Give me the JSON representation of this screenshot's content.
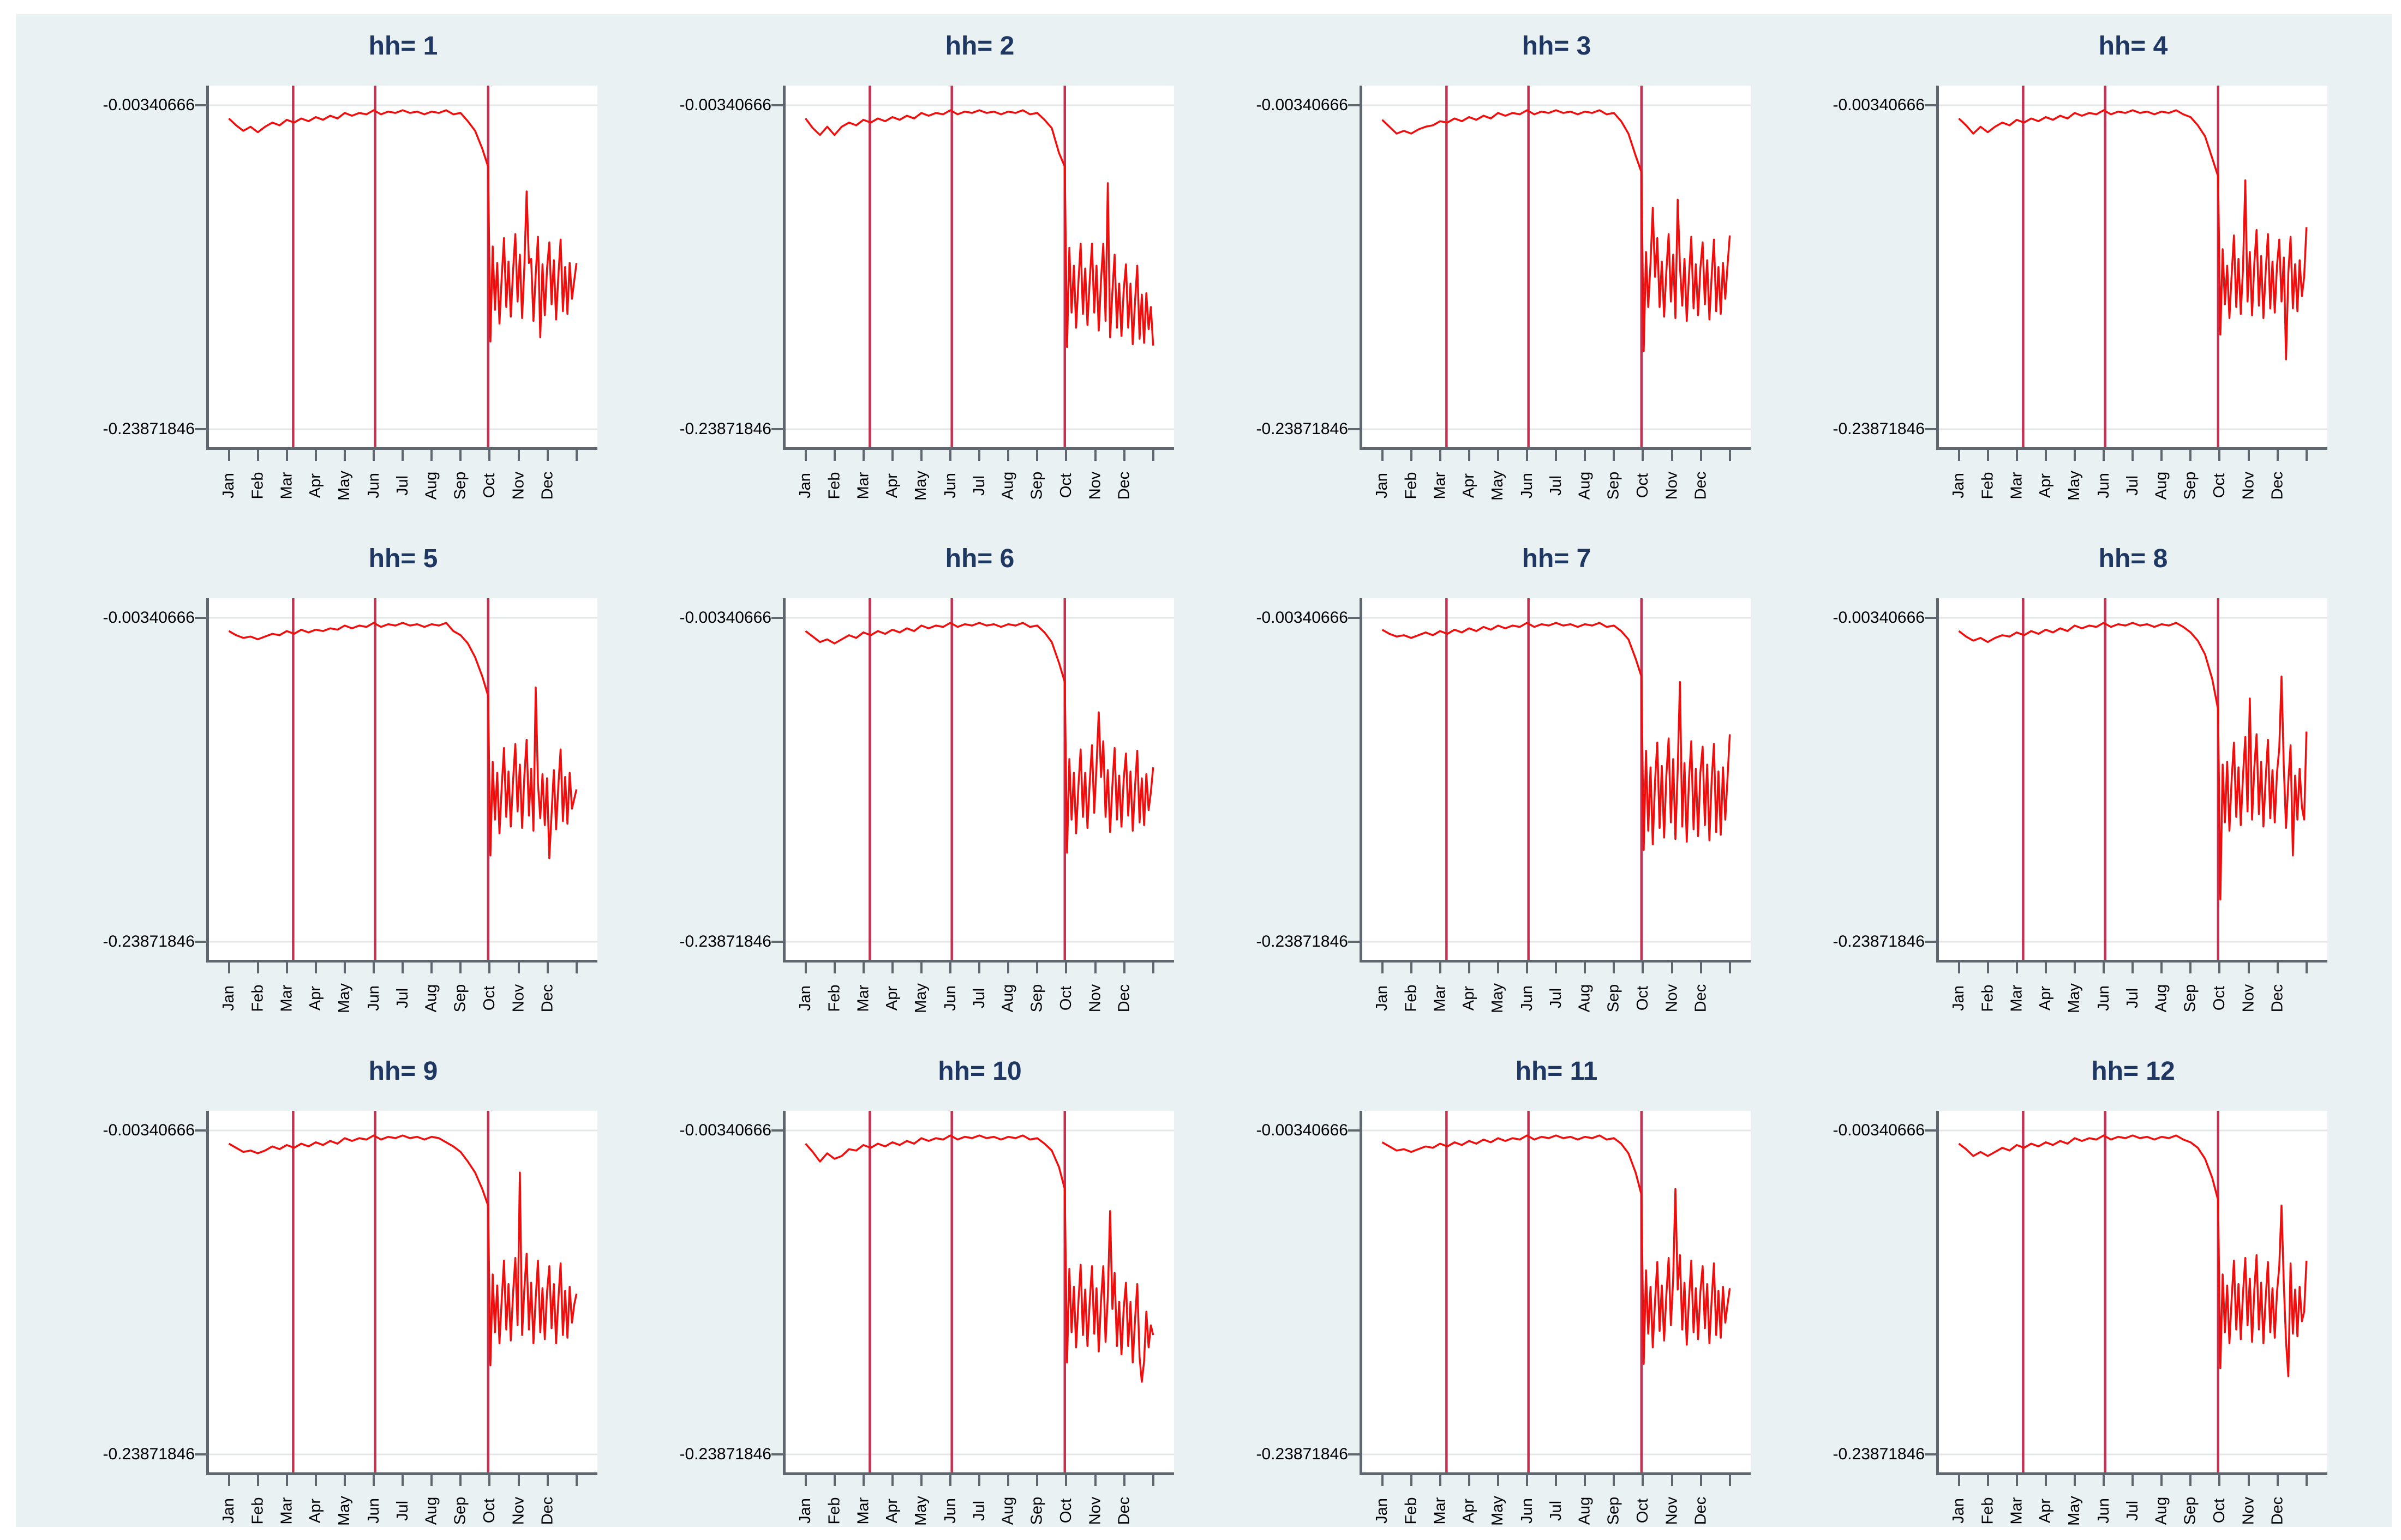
{
  "colors": {
    "page_bg": "#ffffff",
    "canvas_bg": "#eaf1f3",
    "plot_bg": "#ffffff",
    "series_line": "#f20d0d",
    "reference_line": "#c02040",
    "gridline": "#e3e7e8",
    "axis_line": "#5f666d",
    "title_text": "#1e3763",
    "tick_text": "#000000"
  },
  "axes": {
    "y_tick_labels": [
      "-0.00340666",
      "-0.23871846"
    ],
    "x_tick_labels": [
      "Jan",
      "Feb",
      "Mar",
      "Apr",
      "May",
      "Jun",
      "Jul",
      "Aug",
      "Sep",
      "Oct",
      "Nov",
      "Dec"
    ]
  },
  "chart_data": {
    "type": "line",
    "layout": "12 small-multiple panels, 4 columns x 3 rows",
    "x_categories": [
      "Jan",
      "Feb",
      "Mar",
      "Apr",
      "May",
      "Jun",
      "Jul",
      "Aug",
      "Sep",
      "Oct",
      "Nov",
      "Dec"
    ],
    "x_unit": "month index (Jan=0 ... Dec=11, series ends Dec 31 = 12.0)",
    "y_ticks": [
      -0.00340666,
      -0.23871846
    ],
    "y_tick_labels": [
      "-0.00340666",
      "-0.23871846"
    ],
    "ylim": [
      -0.2518,
      0.0109
    ],
    "grid": "horizontal gridlines at both y ticks",
    "legend": "none",
    "reference_vlines_month_x": [
      2.22,
      5.05,
      8.95
    ],
    "pre_x_start": 0.0,
    "pre_x_step": 0.25,
    "post_x_start": 8.95,
    "post_x_end": 12.0,
    "panels": [
      {
        "title": "hh= 1",
        "pre": [
          -0.013,
          -0.018,
          -0.022,
          -0.019,
          -0.023,
          -0.019,
          -0.016,
          -0.018,
          -0.014,
          -0.016,
          -0.013,
          -0.015,
          -0.012,
          -0.014,
          -0.011,
          -0.013,
          -0.009,
          -0.011,
          -0.009,
          -0.01,
          -0.007,
          -0.01,
          -0.008,
          -0.009,
          -0.007,
          -0.009,
          -0.008,
          -0.01,
          -0.008,
          -0.009,
          -0.007,
          -0.01,
          -0.009,
          -0.015,
          -0.022,
          -0.035
        ],
        "post": [
          -0.048,
          -0.175,
          -0.106,
          -0.152,
          -0.118,
          -0.162,
          -0.128,
          -0.1,
          -0.15,
          -0.117,
          -0.157,
          -0.124,
          -0.097,
          -0.146,
          -0.112,
          -0.158,
          -0.12,
          -0.066,
          -0.118,
          -0.115,
          -0.16,
          -0.126,
          -0.099,
          -0.172,
          -0.119,
          -0.156,
          -0.122,
          -0.103,
          -0.148,
          -0.116,
          -0.159,
          -0.127,
          -0.101,
          -0.153,
          -0.121,
          -0.155,
          -0.118,
          -0.144,
          -0.131,
          -0.118
        ]
      },
      {
        "title": "hh= 2",
        "pre": [
          -0.013,
          -0.02,
          -0.025,
          -0.019,
          -0.025,
          -0.019,
          -0.016,
          -0.018,
          -0.014,
          -0.016,
          -0.013,
          -0.015,
          -0.012,
          -0.014,
          -0.011,
          -0.013,
          -0.009,
          -0.011,
          -0.009,
          -0.01,
          -0.007,
          -0.01,
          -0.008,
          -0.009,
          -0.007,
          -0.009,
          -0.008,
          -0.01,
          -0.008,
          -0.009,
          -0.007,
          -0.01,
          -0.009,
          -0.014,
          -0.02,
          -0.038
        ],
        "post": [
          -0.048,
          -0.179,
          -0.107,
          -0.154,
          -0.12,
          -0.165,
          -0.132,
          -0.104,
          -0.155,
          -0.122,
          -0.163,
          -0.131,
          -0.104,
          -0.154,
          -0.12,
          -0.167,
          -0.13,
          -0.104,
          -0.16,
          -0.06,
          -0.172,
          -0.139,
          -0.112,
          -0.165,
          -0.133,
          -0.171,
          -0.138,
          -0.119,
          -0.165,
          -0.133,
          -0.177,
          -0.146,
          -0.12,
          -0.173,
          -0.141,
          -0.176,
          -0.14,
          -0.166,
          -0.15,
          -0.178
        ]
      },
      {
        "title": "hh= 3",
        "pre": [
          -0.014,
          -0.019,
          -0.024,
          -0.022,
          -0.024,
          -0.021,
          -0.019,
          -0.018,
          -0.015,
          -0.016,
          -0.013,
          -0.015,
          -0.012,
          -0.014,
          -0.011,
          -0.013,
          -0.009,
          -0.011,
          -0.009,
          -0.01,
          -0.007,
          -0.01,
          -0.008,
          -0.009,
          -0.007,
          -0.009,
          -0.008,
          -0.01,
          -0.008,
          -0.009,
          -0.007,
          -0.01,
          -0.009,
          -0.015,
          -0.024,
          -0.04
        ],
        "post": [
          -0.052,
          -0.182,
          -0.11,
          -0.15,
          -0.118,
          -0.078,
          -0.128,
          -0.1,
          -0.15,
          -0.117,
          -0.157,
          -0.124,
          -0.097,
          -0.146,
          -0.112,
          -0.158,
          -0.072,
          -0.12,
          -0.149,
          -0.115,
          -0.16,
          -0.126,
          -0.099,
          -0.151,
          -0.119,
          -0.156,
          -0.122,
          -0.103,
          -0.148,
          -0.116,
          -0.159,
          -0.127,
          -0.101,
          -0.153,
          -0.121,
          -0.155,
          -0.118,
          -0.144,
          -0.12,
          -0.098
        ]
      },
      {
        "title": "hh= 4",
        "pre": [
          -0.013,
          -0.018,
          -0.024,
          -0.019,
          -0.023,
          -0.019,
          -0.016,
          -0.018,
          -0.014,
          -0.016,
          -0.013,
          -0.015,
          -0.012,
          -0.014,
          -0.011,
          -0.013,
          -0.009,
          -0.011,
          -0.009,
          -0.01,
          -0.007,
          -0.01,
          -0.008,
          -0.009,
          -0.007,
          -0.009,
          -0.008,
          -0.01,
          -0.008,
          -0.009,
          -0.007,
          -0.01,
          -0.012,
          -0.018,
          -0.026,
          -0.042
        ],
        "post": [
          -0.055,
          -0.17,
          -0.108,
          -0.148,
          -0.12,
          -0.158,
          -0.126,
          -0.098,
          -0.15,
          -0.115,
          -0.155,
          -0.122,
          -0.058,
          -0.146,
          -0.11,
          -0.156,
          -0.118,
          -0.094,
          -0.149,
          -0.113,
          -0.158,
          -0.124,
          -0.097,
          -0.151,
          -0.117,
          -0.154,
          -0.12,
          -0.101,
          -0.146,
          -0.114,
          -0.188,
          -0.125,
          -0.099,
          -0.151,
          -0.119,
          -0.153,
          -0.116,
          -0.142,
          -0.128,
          -0.092
        ]
      },
      {
        "title": "hh= 5",
        "pre": [
          -0.013,
          -0.016,
          -0.018,
          -0.017,
          -0.019,
          -0.017,
          -0.015,
          -0.016,
          -0.013,
          -0.015,
          -0.012,
          -0.014,
          -0.012,
          -0.013,
          -0.011,
          -0.012,
          -0.009,
          -0.011,
          -0.009,
          -0.01,
          -0.007,
          -0.01,
          -0.008,
          -0.009,
          -0.007,
          -0.009,
          -0.008,
          -0.01,
          -0.008,
          -0.009,
          -0.007,
          -0.013,
          -0.016,
          -0.022,
          -0.032,
          -0.046
        ],
        "post": [
          -0.06,
          -0.176,
          -0.108,
          -0.15,
          -0.116,
          -0.16,
          -0.126,
          -0.098,
          -0.148,
          -0.115,
          -0.155,
          -0.122,
          -0.095,
          -0.144,
          -0.11,
          -0.156,
          -0.118,
          -0.092,
          -0.147,
          -0.113,
          -0.158,
          -0.054,
          -0.124,
          -0.149,
          -0.117,
          -0.154,
          -0.12,
          -0.178,
          -0.146,
          -0.114,
          -0.157,
          -0.125,
          -0.099,
          -0.151,
          -0.119,
          -0.153,
          -0.116,
          -0.142,
          -0.135,
          -0.128
        ]
      },
      {
        "title": "hh= 6",
        "pre": [
          -0.013,
          -0.017,
          -0.021,
          -0.019,
          -0.022,
          -0.019,
          -0.016,
          -0.018,
          -0.014,
          -0.016,
          -0.013,
          -0.015,
          -0.012,
          -0.014,
          -0.011,
          -0.013,
          -0.009,
          -0.011,
          -0.009,
          -0.01,
          -0.007,
          -0.01,
          -0.008,
          -0.009,
          -0.007,
          -0.009,
          -0.008,
          -0.01,
          -0.008,
          -0.009,
          -0.007,
          -0.01,
          -0.009,
          -0.014,
          -0.021,
          -0.036
        ],
        "post": [
          -0.05,
          -0.174,
          -0.106,
          -0.15,
          -0.116,
          -0.16,
          -0.126,
          -0.099,
          -0.148,
          -0.116,
          -0.156,
          -0.123,
          -0.096,
          -0.145,
          -0.111,
          -0.072,
          -0.119,
          -0.093,
          -0.148,
          -0.114,
          -0.159,
          -0.125,
          -0.098,
          -0.15,
          -0.118,
          -0.155,
          -0.121,
          -0.102,
          -0.147,
          -0.115,
          -0.158,
          -0.126,
          -0.1,
          -0.152,
          -0.12,
          -0.154,
          -0.117,
          -0.143,
          -0.13,
          -0.112
        ]
      },
      {
        "title": "hh= 7",
        "pre": [
          -0.012,
          -0.015,
          -0.017,
          -0.016,
          -0.018,
          -0.016,
          -0.014,
          -0.016,
          -0.013,
          -0.015,
          -0.012,
          -0.014,
          -0.011,
          -0.013,
          -0.01,
          -0.012,
          -0.009,
          -0.011,
          -0.009,
          -0.01,
          -0.007,
          -0.01,
          -0.008,
          -0.009,
          -0.007,
          -0.009,
          -0.008,
          -0.01,
          -0.008,
          -0.009,
          -0.007,
          -0.01,
          -0.009,
          -0.013,
          -0.019,
          -0.033
        ],
        "post": [
          -0.046,
          -0.172,
          -0.1,
          -0.158,
          -0.112,
          -0.168,
          -0.122,
          -0.094,
          -0.156,
          -0.111,
          -0.163,
          -0.118,
          -0.091,
          -0.152,
          -0.106,
          -0.164,
          -0.114,
          -0.05,
          -0.155,
          -0.109,
          -0.166,
          -0.12,
          -0.093,
          -0.157,
          -0.113,
          -0.162,
          -0.116,
          -0.097,
          -0.154,
          -0.11,
          -0.165,
          -0.121,
          -0.095,
          -0.159,
          -0.115,
          -0.161,
          -0.112,
          -0.15,
          -0.12,
          -0.088
        ]
      },
      {
        "title": "hh= 8",
        "pre": [
          -0.013,
          -0.017,
          -0.02,
          -0.018,
          -0.021,
          -0.018,
          -0.016,
          -0.017,
          -0.014,
          -0.016,
          -0.013,
          -0.015,
          -0.012,
          -0.014,
          -0.011,
          -0.013,
          -0.009,
          -0.011,
          -0.009,
          -0.01,
          -0.007,
          -0.01,
          -0.008,
          -0.009,
          -0.007,
          -0.009,
          -0.008,
          -0.01,
          -0.008,
          -0.009,
          -0.007,
          -0.01,
          -0.014,
          -0.02,
          -0.03,
          -0.048
        ],
        "post": [
          -0.07,
          -0.208,
          -0.11,
          -0.152,
          -0.108,
          -0.158,
          -0.12,
          -0.094,
          -0.148,
          -0.112,
          -0.154,
          -0.118,
          -0.09,
          -0.144,
          -0.062,
          -0.15,
          -0.112,
          -0.088,
          -0.146,
          -0.108,
          -0.155,
          -0.12,
          -0.092,
          -0.149,
          -0.114,
          -0.152,
          -0.116,
          -0.098,
          -0.046,
          -0.112,
          -0.156,
          -0.122,
          -0.096,
          -0.176,
          -0.118,
          -0.15,
          -0.113,
          -0.141,
          -0.15,
          -0.086
        ]
      },
      {
        "title": "hh= 9",
        "pre": [
          -0.013,
          -0.016,
          -0.019,
          -0.018,
          -0.02,
          -0.018,
          -0.015,
          -0.017,
          -0.014,
          -0.016,
          -0.013,
          -0.015,
          -0.012,
          -0.014,
          -0.011,
          -0.013,
          -0.009,
          -0.011,
          -0.009,
          -0.01,
          -0.007,
          -0.01,
          -0.008,
          -0.009,
          -0.007,
          -0.009,
          -0.008,
          -0.01,
          -0.008,
          -0.009,
          -0.012,
          -0.015,
          -0.019,
          -0.026,
          -0.034,
          -0.046
        ],
        "post": [
          -0.058,
          -0.174,
          -0.108,
          -0.15,
          -0.116,
          -0.158,
          -0.126,
          -0.098,
          -0.148,
          -0.115,
          -0.156,
          -0.122,
          -0.096,
          -0.145,
          -0.034,
          -0.152,
          -0.118,
          -0.093,
          -0.148,
          -0.114,
          -0.158,
          -0.125,
          -0.098,
          -0.15,
          -0.118,
          -0.155,
          -0.121,
          -0.102,
          -0.147,
          -0.115,
          -0.158,
          -0.126,
          -0.1,
          -0.152,
          -0.12,
          -0.154,
          -0.117,
          -0.143,
          -0.13,
          -0.122
        ]
      },
      {
        "title": "hh= 10",
        "pre": [
          -0.013,
          -0.019,
          -0.026,
          -0.02,
          -0.024,
          -0.022,
          -0.017,
          -0.018,
          -0.014,
          -0.016,
          -0.013,
          -0.015,
          -0.012,
          -0.014,
          -0.011,
          -0.013,
          -0.009,
          -0.011,
          -0.009,
          -0.01,
          -0.007,
          -0.01,
          -0.008,
          -0.009,
          -0.007,
          -0.009,
          -0.008,
          -0.01,
          -0.008,
          -0.009,
          -0.007,
          -0.01,
          -0.009,
          -0.013,
          -0.018,
          -0.03
        ],
        "post": [
          -0.046,
          -0.172,
          -0.104,
          -0.15,
          -0.117,
          -0.161,
          -0.128,
          -0.101,
          -0.152,
          -0.119,
          -0.16,
          -0.128,
          -0.102,
          -0.151,
          -0.118,
          -0.164,
          -0.127,
          -0.102,
          -0.157,
          -0.124,
          -0.062,
          -0.133,
          -0.107,
          -0.16,
          -0.128,
          -0.166,
          -0.133,
          -0.114,
          -0.16,
          -0.128,
          -0.172,
          -0.141,
          -0.115,
          -0.168,
          -0.186,
          -0.171,
          -0.135,
          -0.161,
          -0.145,
          -0.152
        ]
      },
      {
        "title": "hh= 11",
        "pre": [
          -0.012,
          -0.015,
          -0.018,
          -0.017,
          -0.019,
          -0.017,
          -0.015,
          -0.016,
          -0.013,
          -0.015,
          -0.012,
          -0.014,
          -0.011,
          -0.013,
          -0.01,
          -0.012,
          -0.009,
          -0.011,
          -0.009,
          -0.01,
          -0.007,
          -0.01,
          -0.008,
          -0.009,
          -0.007,
          -0.009,
          -0.008,
          -0.01,
          -0.008,
          -0.009,
          -0.007,
          -0.01,
          -0.009,
          -0.013,
          -0.02,
          -0.034
        ],
        "post": [
          -0.05,
          -0.173,
          -0.105,
          -0.151,
          -0.117,
          -0.161,
          -0.127,
          -0.099,
          -0.149,
          -0.116,
          -0.156,
          -0.123,
          -0.096,
          -0.145,
          -0.111,
          -0.046,
          -0.119,
          -0.094,
          -0.148,
          -0.114,
          -0.159,
          -0.125,
          -0.098,
          -0.15,
          -0.118,
          -0.155,
          -0.121,
          -0.102,
          -0.147,
          -0.115,
          -0.158,
          -0.126,
          -0.1,
          -0.152,
          -0.12,
          -0.154,
          -0.117,
          -0.143,
          -0.13,
          -0.118
        ]
      },
      {
        "title": "hh= 12",
        "pre": [
          -0.013,
          -0.017,
          -0.022,
          -0.019,
          -0.022,
          -0.019,
          -0.016,
          -0.018,
          -0.014,
          -0.016,
          -0.013,
          -0.015,
          -0.012,
          -0.014,
          -0.011,
          -0.013,
          -0.009,
          -0.011,
          -0.009,
          -0.01,
          -0.007,
          -0.01,
          -0.008,
          -0.009,
          -0.007,
          -0.009,
          -0.008,
          -0.01,
          -0.008,
          -0.009,
          -0.007,
          -0.01,
          -0.012,
          -0.016,
          -0.024,
          -0.038
        ],
        "post": [
          -0.054,
          -0.176,
          -0.108,
          -0.15,
          -0.116,
          -0.158,
          -0.125,
          -0.098,
          -0.148,
          -0.115,
          -0.155,
          -0.122,
          -0.096,
          -0.145,
          -0.111,
          -0.157,
          -0.119,
          -0.094,
          -0.148,
          -0.114,
          -0.158,
          -0.125,
          -0.099,
          -0.15,
          -0.118,
          -0.154,
          -0.121,
          -0.102,
          -0.058,
          -0.115,
          -0.157,
          -0.182,
          -0.1,
          -0.151,
          -0.119,
          -0.153,
          -0.117,
          -0.142,
          -0.135,
          -0.098
        ]
      }
    ]
  }
}
